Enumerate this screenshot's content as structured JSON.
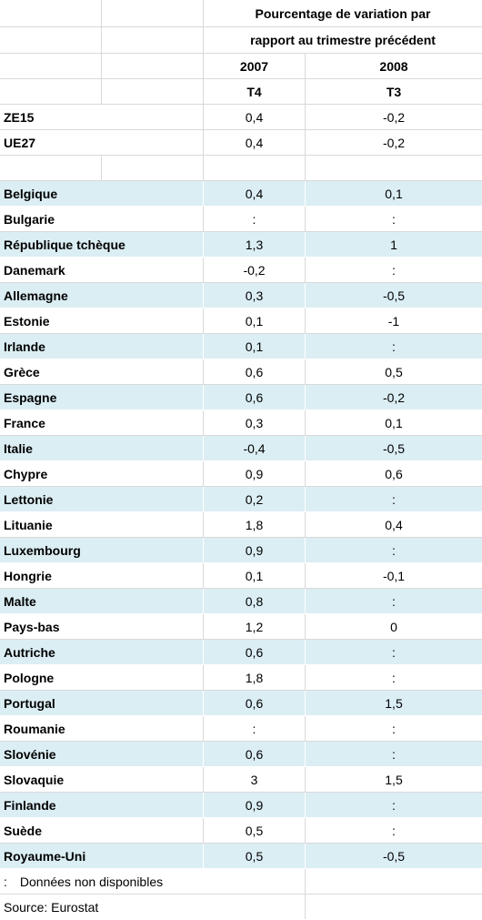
{
  "table": {
    "title_lines": [
      "Pourcentage de variation par",
      "rapport au trimestre précédent"
    ],
    "years": [
      "2007",
      "2008"
    ],
    "quarters": [
      "T4",
      "T3"
    ],
    "aggregates": [
      [
        "ZE15",
        "0,4",
        "-0,2"
      ],
      [
        "UE27",
        "0,4",
        "-0,2"
      ]
    ],
    "countries": [
      [
        "Belgique",
        "0,4",
        "0,1"
      ],
      [
        "Bulgarie",
        ":",
        ":"
      ],
      [
        "République tchèque",
        "1,3",
        "1"
      ],
      [
        "Danemark",
        "-0,2",
        ":"
      ],
      [
        "Allemagne",
        "0,3",
        "-0,5"
      ],
      [
        "Estonie",
        "0,1",
        "-1"
      ],
      [
        "Irlande",
        "0,1",
        ":"
      ],
      [
        "Grèce",
        "0,6",
        "0,5"
      ],
      [
        "Espagne",
        "0,6",
        "-0,2"
      ],
      [
        "France",
        "0,3",
        "0,1"
      ],
      [
        "Italie",
        "-0,4",
        "-0,5"
      ],
      [
        "Chypre",
        "0,9",
        "0,6"
      ],
      [
        "Lettonie",
        "0,2",
        ":"
      ],
      [
        "Lituanie",
        "1,8",
        "0,4"
      ],
      [
        "Luxembourg",
        "0,9",
        ":"
      ],
      [
        "Hongrie",
        "0,1",
        "-0,1"
      ],
      [
        "Malte",
        "0,8",
        ":"
      ],
      [
        "Pays-bas",
        "1,2",
        "0"
      ],
      [
        "Autriche",
        "0,6",
        ":"
      ],
      [
        "Pologne",
        "1,8",
        ":"
      ],
      [
        "Portugal",
        "0,6",
        "1,5"
      ],
      [
        "Roumanie",
        ":",
        ":"
      ],
      [
        "Slovénie",
        "0,6",
        ":"
      ],
      [
        "Slovaquie",
        "3",
        "1,5"
      ],
      [
        "Finlande",
        "0,9",
        ":"
      ],
      [
        "Suède",
        "0,5",
        ":"
      ],
      [
        "Royaume-Uni",
        "0,5",
        "-0,5"
      ]
    ],
    "footnote": [
      ":",
      "Données non disponibles"
    ],
    "source": "Source: Eurostat"
  }
}
